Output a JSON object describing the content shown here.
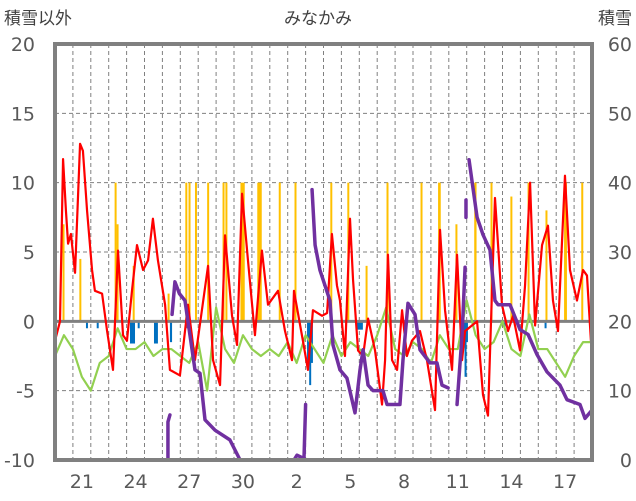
{
  "chart_data": {
    "type": "line",
    "title": "みなかみ",
    "left_axis_label": "積雪以外",
    "right_axis_label": "積雪",
    "ylim_left": [
      -10,
      20
    ],
    "ylim_right": [
      0,
      60
    ],
    "left_ticks": [
      "20",
      "15",
      "10",
      "5",
      "0",
      "-5",
      "-10"
    ],
    "left_tick_values": [
      20,
      15,
      10,
      5,
      0,
      -5,
      -10
    ],
    "right_ticks": [
      "60",
      "50",
      "40",
      "30",
      "20",
      "10",
      "0"
    ],
    "right_tick_values": [
      60,
      50,
      40,
      30,
      20,
      10,
      0
    ],
    "x_days": 30,
    "x_ticks": [
      {
        "label": "21",
        "day": 1
      },
      {
        "label": "24",
        "day": 4
      },
      {
        "label": "27",
        "day": 7
      },
      {
        "label": "30",
        "day": 10
      },
      {
        "label": "2",
        "day": 13
      },
      {
        "label": "5",
        "day": 16
      },
      {
        "label": "8",
        "day": 19
      },
      {
        "label": "11",
        "day": 22
      },
      {
        "label": "14",
        "day": 25
      },
      {
        "label": "17",
        "day": 28
      }
    ],
    "grid": true,
    "colors": {
      "red": "#ff0000",
      "green": "#92d050",
      "purple": "#7030a0",
      "yellow": "#ffc000",
      "blue": "#0070c0",
      "frame": "#808080"
    },
    "series_red": [
      [
        0,
        -1.4
      ],
      [
        0.28,
        0
      ],
      [
        0.45,
        11.7
      ],
      [
        0.61,
        8
      ],
      [
        0.73,
        5.6
      ],
      [
        0.89,
        6.3
      ],
      [
        1.12,
        3.5
      ],
      [
        1.4,
        12.8
      ],
      [
        1.56,
        12.3
      ],
      [
        1.79,
        8
      ],
      [
        2.07,
        3.7
      ],
      [
        2.23,
        2.2
      ],
      [
        2.63,
        2
      ],
      [
        2.91,
        -0.7
      ],
      [
        3.24,
        -3.5
      ],
      [
        3.52,
        5.1
      ],
      [
        3.8,
        -1
      ],
      [
        4.02,
        -1.4
      ],
      [
        4.3,
        2.2
      ],
      [
        4.58,
        5.5
      ],
      [
        4.92,
        3.7
      ],
      [
        5.2,
        4.4
      ],
      [
        5.47,
        7.4
      ],
      [
        5.75,
        4.4
      ],
      [
        6.15,
        1.2
      ],
      [
        6.42,
        -3.5
      ],
      [
        6.98,
        -3.9
      ],
      [
        7.43,
        1.2
      ],
      [
        7.82,
        -2.8
      ],
      [
        8.55,
        4
      ],
      [
        8.83,
        -2.8
      ],
      [
        9.22,
        -4.6
      ],
      [
        9.5,
        6.2
      ],
      [
        9.89,
        0.4
      ],
      [
        10.17,
        -1.7
      ],
      [
        10.45,
        9.2
      ],
      [
        10.78,
        4.4
      ],
      [
        11.17,
        -1
      ],
      [
        11.56,
        5.1
      ],
      [
        11.9,
        1.2
      ],
      [
        12.46,
        2.2
      ],
      [
        12.85,
        -0.7
      ],
      [
        13.24,
        -2.8
      ],
      [
        13.35,
        2.2
      ],
      [
        13.85,
        -1.4
      ],
      [
        14.13,
        -3.5
      ],
      [
        14.41,
        0.8
      ],
      [
        14.92,
        0.4
      ],
      [
        15.2,
        0.6
      ],
      [
        15.47,
        6.3
      ],
      [
        15.75,
        2.6
      ],
      [
        15.92,
        1.5
      ],
      [
        16.2,
        -2.5
      ],
      [
        16.48,
        7.4
      ],
      [
        16.65,
        3
      ],
      [
        16.93,
        -2.1
      ],
      [
        17.21,
        -2.5
      ],
      [
        17.49,
        0.2
      ],
      [
        17.88,
        -2.1
      ],
      [
        18.27,
        -6
      ],
      [
        18.44,
        -2.8
      ],
      [
        18.6,
        4.8
      ],
      [
        18.83,
        -2.8
      ],
      [
        19.11,
        -3.5
      ],
      [
        19.39,
        0.8
      ],
      [
        19.66,
        -2.5
      ],
      [
        19.94,
        -1.4
      ],
      [
        20.39,
        -0.7
      ],
      [
        20.78,
        -2.8
      ],
      [
        21.23,
        -6.4
      ],
      [
        21.51,
        6.6
      ],
      [
        21.79,
        0.8
      ],
      [
        22.18,
        -3.5
      ],
      [
        22.46,
        4.8
      ],
      [
        22.74,
        -2.8
      ],
      [
        22.91,
        -0.7
      ],
      [
        23.58,
        0
      ],
      [
        23.91,
        -5.3
      ],
      [
        24.19,
        -6.8
      ],
      [
        24.58,
        8.9
      ],
      [
        24.97,
        1.2
      ],
      [
        25.31,
        -0.7
      ],
      [
        25.59,
        0.4
      ],
      [
        25.98,
        -2.1
      ],
      [
        26.26,
        2.6
      ],
      [
        26.54,
        10
      ],
      [
        26.82,
        -0.3
      ],
      [
        27.21,
        5.5
      ],
      [
        27.54,
        6.9
      ],
      [
        27.82,
        1.5
      ],
      [
        28.1,
        -0.7
      ],
      [
        28.49,
        10.5
      ],
      [
        28.77,
        3.7
      ],
      [
        29.16,
        1.5
      ],
      [
        29.5,
        3.7
      ],
      [
        29.72,
        3.3
      ],
      [
        29.94,
        -1.4
      ]
    ],
    "series_green": [
      -2.5,
      -1,
      -2,
      -4,
      -5,
      -3,
      -2.5,
      -0.5,
      -2,
      -2,
      -1.5,
      -2.5,
      -2,
      -2,
      -2.5,
      -3,
      -1.5,
      -5,
      1,
      -2,
      -3,
      -1,
      -2,
      -2.5,
      -2,
      -2.5,
      -1.5,
      -3,
      -1,
      -2,
      -3,
      -1,
      -2.5,
      -1.5,
      -2,
      -2.5,
      -1,
      1,
      -2,
      -2.5,
      -1.5,
      -2,
      -3,
      -1,
      -2,
      -2,
      1.5,
      -1,
      -2,
      -1.5,
      0,
      -2,
      -2.5,
      0.5,
      -2,
      -2,
      -3,
      -4,
      -2.5,
      -1.5,
      -1.5
    ],
    "series_purple_right": [
      [
        [
          0,
          0
        ],
        [
          6.31,
          0
        ],
        [
          6.31,
          5.5
        ],
        [
          6.42,
          6.5
        ]
      ],
      [
        [
          6.54,
          21
        ],
        [
          6.7,
          25.7
        ],
        [
          6.95,
          24
        ],
        [
          7.26,
          23
        ],
        [
          7.82,
          13
        ],
        [
          8.1,
          12.5
        ],
        [
          8.38,
          5.8
        ],
        [
          8.94,
          4.3
        ],
        [
          9.77,
          2.9
        ],
        [
          10.34,
          0
        ],
        [
          13.35,
          0
        ],
        [
          13.52,
          0.7
        ],
        [
          13.91,
          0.2
        ],
        [
          14.0,
          8
        ]
      ],
      [
        [
          14.36,
          39
        ],
        [
          14.53,
          31
        ],
        [
          14.8,
          27.4
        ],
        [
          15.36,
          23
        ],
        [
          15.53,
          16.6
        ],
        [
          15.92,
          13
        ],
        [
          16.31,
          11.8
        ],
        [
          16.59,
          8.7
        ],
        [
          16.76,
          6.8
        ],
        [
          17.04,
          13
        ],
        [
          17.21,
          15.9
        ],
        [
          17.49,
          10.8
        ],
        [
          17.77,
          10
        ],
        [
          18.32,
          10
        ],
        [
          18.55,
          8
        ],
        [
          19.27,
          8
        ],
        [
          19.44,
          14.4
        ],
        [
          19.72,
          22.6
        ],
        [
          20.11,
          21
        ],
        [
          20.39,
          15.9
        ],
        [
          20.95,
          14
        ],
        [
          21.34,
          14
        ],
        [
          21.62,
          10.8
        ],
        [
          21.96,
          10.4
        ]
      ],
      [
        [
          22.46,
          8
        ],
        [
          22.74,
          18
        ],
        [
          22.91,
          27.8
        ]
      ],
      [
        [
          22.96,
          37.5
        ],
        [
          22.96,
          35
        ]
      ],
      [
        [
          23.13,
          43.3
        ],
        [
          23.58,
          35
        ],
        [
          23.91,
          32.5
        ],
        [
          24.3,
          30.3
        ],
        [
          24.58,
          23
        ],
        [
          24.75,
          22.4
        ],
        [
          25.42,
          22.4
        ],
        [
          25.98,
          18.8
        ],
        [
          26.43,
          18.1
        ],
        [
          26.93,
          15.2
        ],
        [
          27.49,
          12.7
        ],
        [
          28.21,
          10.8
        ],
        [
          28.6,
          8.7
        ],
        [
          29.33,
          8
        ],
        [
          29.61,
          6
        ],
        [
          30,
          7.2
        ]
      ]
    ],
    "bars_yellow": [
      [
        0.42,
        0.48,
        7
      ],
      [
        1.36,
        1.42,
        4.5
      ],
      [
        3.33,
        3.4,
        10
      ],
      [
        3.44,
        3.48,
        7
      ],
      [
        4.34,
        4.38,
        4
      ],
      [
        6.29,
        6.33,
        2
      ],
      [
        7.28,
        7.36,
        10
      ],
      [
        7.46,
        7.52,
        10
      ],
      [
        7.82,
        7.86,
        10
      ],
      [
        8.5,
        8.6,
        10
      ],
      [
        9.36,
        9.46,
        10
      ],
      [
        9.52,
        9.6,
        10
      ],
      [
        10.36,
        10.6,
        10
      ],
      [
        11.3,
        11.55,
        10
      ],
      [
        12.5,
        12.54,
        10
      ],
      [
        13.38,
        13.46,
        10
      ],
      [
        15.38,
        15.48,
        10
      ],
      [
        16.33,
        16.43,
        10
      ],
      [
        17.35,
        17.42,
        4
      ],
      [
        18.52,
        18.58,
        10
      ],
      [
        20.42,
        20.5,
        10
      ],
      [
        21.4,
        21.55,
        10
      ],
      [
        22.37,
        22.43,
        7
      ],
      [
        23.42,
        23.55,
        10
      ],
      [
        24.33,
        24.42,
        10
      ],
      [
        25.44,
        25.52,
        9
      ],
      [
        26.4,
        26.49,
        10
      ],
      [
        27.4,
        27.46,
        8
      ],
      [
        28.44,
        28.6,
        10
      ],
      [
        29.4,
        29.5,
        10
      ]
    ],
    "bars_blue": [
      [
        1.73,
        1.79,
        -0.5
      ],
      [
        2.33,
        2.38,
        -0.5
      ],
      [
        4.19,
        4.47,
        -1.6
      ],
      [
        4.62,
        4.66,
        -0.5
      ],
      [
        5.53,
        5.75,
        -1.6
      ],
      [
        6.42,
        6.54,
        -1.5
      ],
      [
        7.35,
        7.39,
        -0.5
      ],
      [
        14.08,
        14.41,
        -3
      ],
      [
        14.2,
        14.26,
        -4.6
      ],
      [
        16.87,
        17.2,
        -0.6
      ],
      [
        22.74,
        23.07,
        -1.5
      ],
      [
        22.88,
        22.93,
        -4
      ],
      [
        25.06,
        25.1,
        -0.4
      ],
      [
        27.35,
        27.4,
        -0.5
      ]
    ]
  }
}
